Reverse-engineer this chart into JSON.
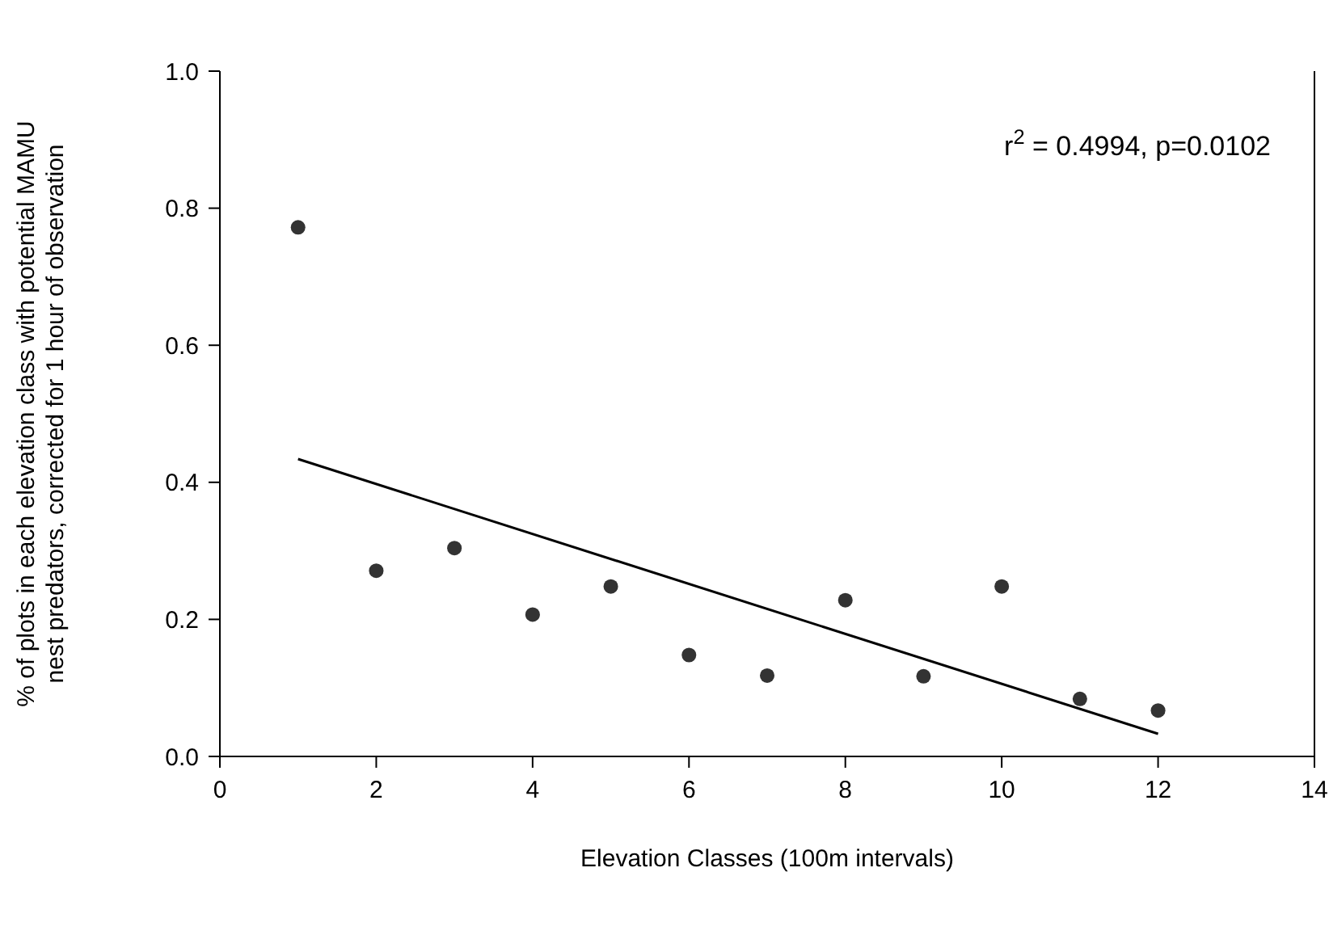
{
  "chart_data": {
    "type": "scatter",
    "xlabel": "Elevation Classes (100m intervals)",
    "ylabel": "% of plots in each elevation class with potential MAMU nest predators, corrected for 1 hour of observation",
    "x": [
      1,
      2,
      3,
      4,
      5,
      6,
      7,
      8,
      9,
      10,
      11,
      12
    ],
    "series": [
      {
        "color": "#333333",
        "values": [
          0.772,
          0.271,
          0.304,
          0.207,
          0.248,
          0.148,
          0.118,
          0.228,
          0.117,
          0.248,
          0.084,
          0.067
        ]
      },
      {
        "type": "line",
        "color": "#000000",
        "marker": "none",
        "line_style": "solid",
        "x": [
          1,
          12
        ],
        "values": [
          0.434,
          0.033
        ]
      }
    ],
    "xlim": [
      0,
      14
    ],
    "xticks": [
      0,
      2,
      4,
      6,
      8,
      10,
      12,
      14
    ],
    "ylim": [
      0,
      1
    ],
    "yticks": [
      {
        "value": 0,
        "label": "0.0"
      },
      {
        "value": 0.2,
        "label": "0.2"
      },
      {
        "value": 0.4,
        "label": "0.4"
      },
      {
        "value": 0.6,
        "label": "0.6"
      },
      {
        "value": 0.8,
        "label": "0.8"
      },
      {
        "value": 1,
        "label": "1.0"
      }
    ],
    "annotations": [
      "r$^{2}$ = 0.4994, p=0.0102"
    ],
    "marker": "circle"
  }
}
